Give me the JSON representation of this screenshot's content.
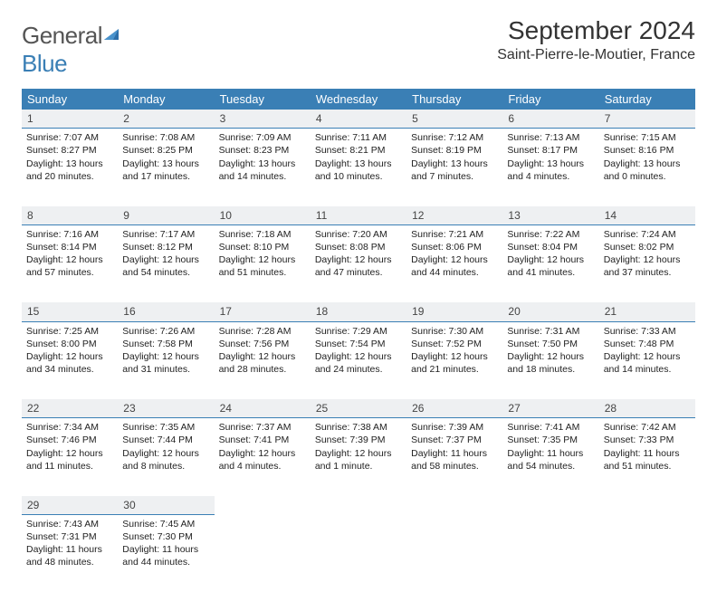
{
  "logo": {
    "text1": "General",
    "text2": "Blue"
  },
  "header": {
    "month_title": "September 2024",
    "location": "Saint-Pierre-le-Moutier, France"
  },
  "colors": {
    "header_bg": "#3a7fb5",
    "daynum_bg": "#eef0f2",
    "day_border": "#3a7fb5"
  },
  "weekdays": [
    "Sunday",
    "Monday",
    "Tuesday",
    "Wednesday",
    "Thursday",
    "Friday",
    "Saturday"
  ],
  "weeks": [
    [
      {
        "n": "1",
        "sr": "7:07 AM",
        "ss": "8:27 PM",
        "dl": "13 hours and 20 minutes."
      },
      {
        "n": "2",
        "sr": "7:08 AM",
        "ss": "8:25 PM",
        "dl": "13 hours and 17 minutes."
      },
      {
        "n": "3",
        "sr": "7:09 AM",
        "ss": "8:23 PM",
        "dl": "13 hours and 14 minutes."
      },
      {
        "n": "4",
        "sr": "7:11 AM",
        "ss": "8:21 PM",
        "dl": "13 hours and 10 minutes."
      },
      {
        "n": "5",
        "sr": "7:12 AM",
        "ss": "8:19 PM",
        "dl": "13 hours and 7 minutes."
      },
      {
        "n": "6",
        "sr": "7:13 AM",
        "ss": "8:17 PM",
        "dl": "13 hours and 4 minutes."
      },
      {
        "n": "7",
        "sr": "7:15 AM",
        "ss": "8:16 PM",
        "dl": "13 hours and 0 minutes."
      }
    ],
    [
      {
        "n": "8",
        "sr": "7:16 AM",
        "ss": "8:14 PM",
        "dl": "12 hours and 57 minutes."
      },
      {
        "n": "9",
        "sr": "7:17 AM",
        "ss": "8:12 PM",
        "dl": "12 hours and 54 minutes."
      },
      {
        "n": "10",
        "sr": "7:18 AM",
        "ss": "8:10 PM",
        "dl": "12 hours and 51 minutes."
      },
      {
        "n": "11",
        "sr": "7:20 AM",
        "ss": "8:08 PM",
        "dl": "12 hours and 47 minutes."
      },
      {
        "n": "12",
        "sr": "7:21 AM",
        "ss": "8:06 PM",
        "dl": "12 hours and 44 minutes."
      },
      {
        "n": "13",
        "sr": "7:22 AM",
        "ss": "8:04 PM",
        "dl": "12 hours and 41 minutes."
      },
      {
        "n": "14",
        "sr": "7:24 AM",
        "ss": "8:02 PM",
        "dl": "12 hours and 37 minutes."
      }
    ],
    [
      {
        "n": "15",
        "sr": "7:25 AM",
        "ss": "8:00 PM",
        "dl": "12 hours and 34 minutes."
      },
      {
        "n": "16",
        "sr": "7:26 AM",
        "ss": "7:58 PM",
        "dl": "12 hours and 31 minutes."
      },
      {
        "n": "17",
        "sr": "7:28 AM",
        "ss": "7:56 PM",
        "dl": "12 hours and 28 minutes."
      },
      {
        "n": "18",
        "sr": "7:29 AM",
        "ss": "7:54 PM",
        "dl": "12 hours and 24 minutes."
      },
      {
        "n": "19",
        "sr": "7:30 AM",
        "ss": "7:52 PM",
        "dl": "12 hours and 21 minutes."
      },
      {
        "n": "20",
        "sr": "7:31 AM",
        "ss": "7:50 PM",
        "dl": "12 hours and 18 minutes."
      },
      {
        "n": "21",
        "sr": "7:33 AM",
        "ss": "7:48 PM",
        "dl": "12 hours and 14 minutes."
      }
    ],
    [
      {
        "n": "22",
        "sr": "7:34 AM",
        "ss": "7:46 PM",
        "dl": "12 hours and 11 minutes."
      },
      {
        "n": "23",
        "sr": "7:35 AM",
        "ss": "7:44 PM",
        "dl": "12 hours and 8 minutes."
      },
      {
        "n": "24",
        "sr": "7:37 AM",
        "ss": "7:41 PM",
        "dl": "12 hours and 4 minutes."
      },
      {
        "n": "25",
        "sr": "7:38 AM",
        "ss": "7:39 PM",
        "dl": "12 hours and 1 minute."
      },
      {
        "n": "26",
        "sr": "7:39 AM",
        "ss": "7:37 PM",
        "dl": "11 hours and 58 minutes."
      },
      {
        "n": "27",
        "sr": "7:41 AM",
        "ss": "7:35 PM",
        "dl": "11 hours and 54 minutes."
      },
      {
        "n": "28",
        "sr": "7:42 AM",
        "ss": "7:33 PM",
        "dl": "11 hours and 51 minutes."
      }
    ],
    [
      {
        "n": "29",
        "sr": "7:43 AM",
        "ss": "7:31 PM",
        "dl": "11 hours and 48 minutes."
      },
      {
        "n": "30",
        "sr": "7:45 AM",
        "ss": "7:30 PM",
        "dl": "11 hours and 44 minutes."
      },
      null,
      null,
      null,
      null,
      null
    ]
  ],
  "labels": {
    "sunrise": "Sunrise: ",
    "sunset": "Sunset: ",
    "daylight": "Daylight: "
  }
}
